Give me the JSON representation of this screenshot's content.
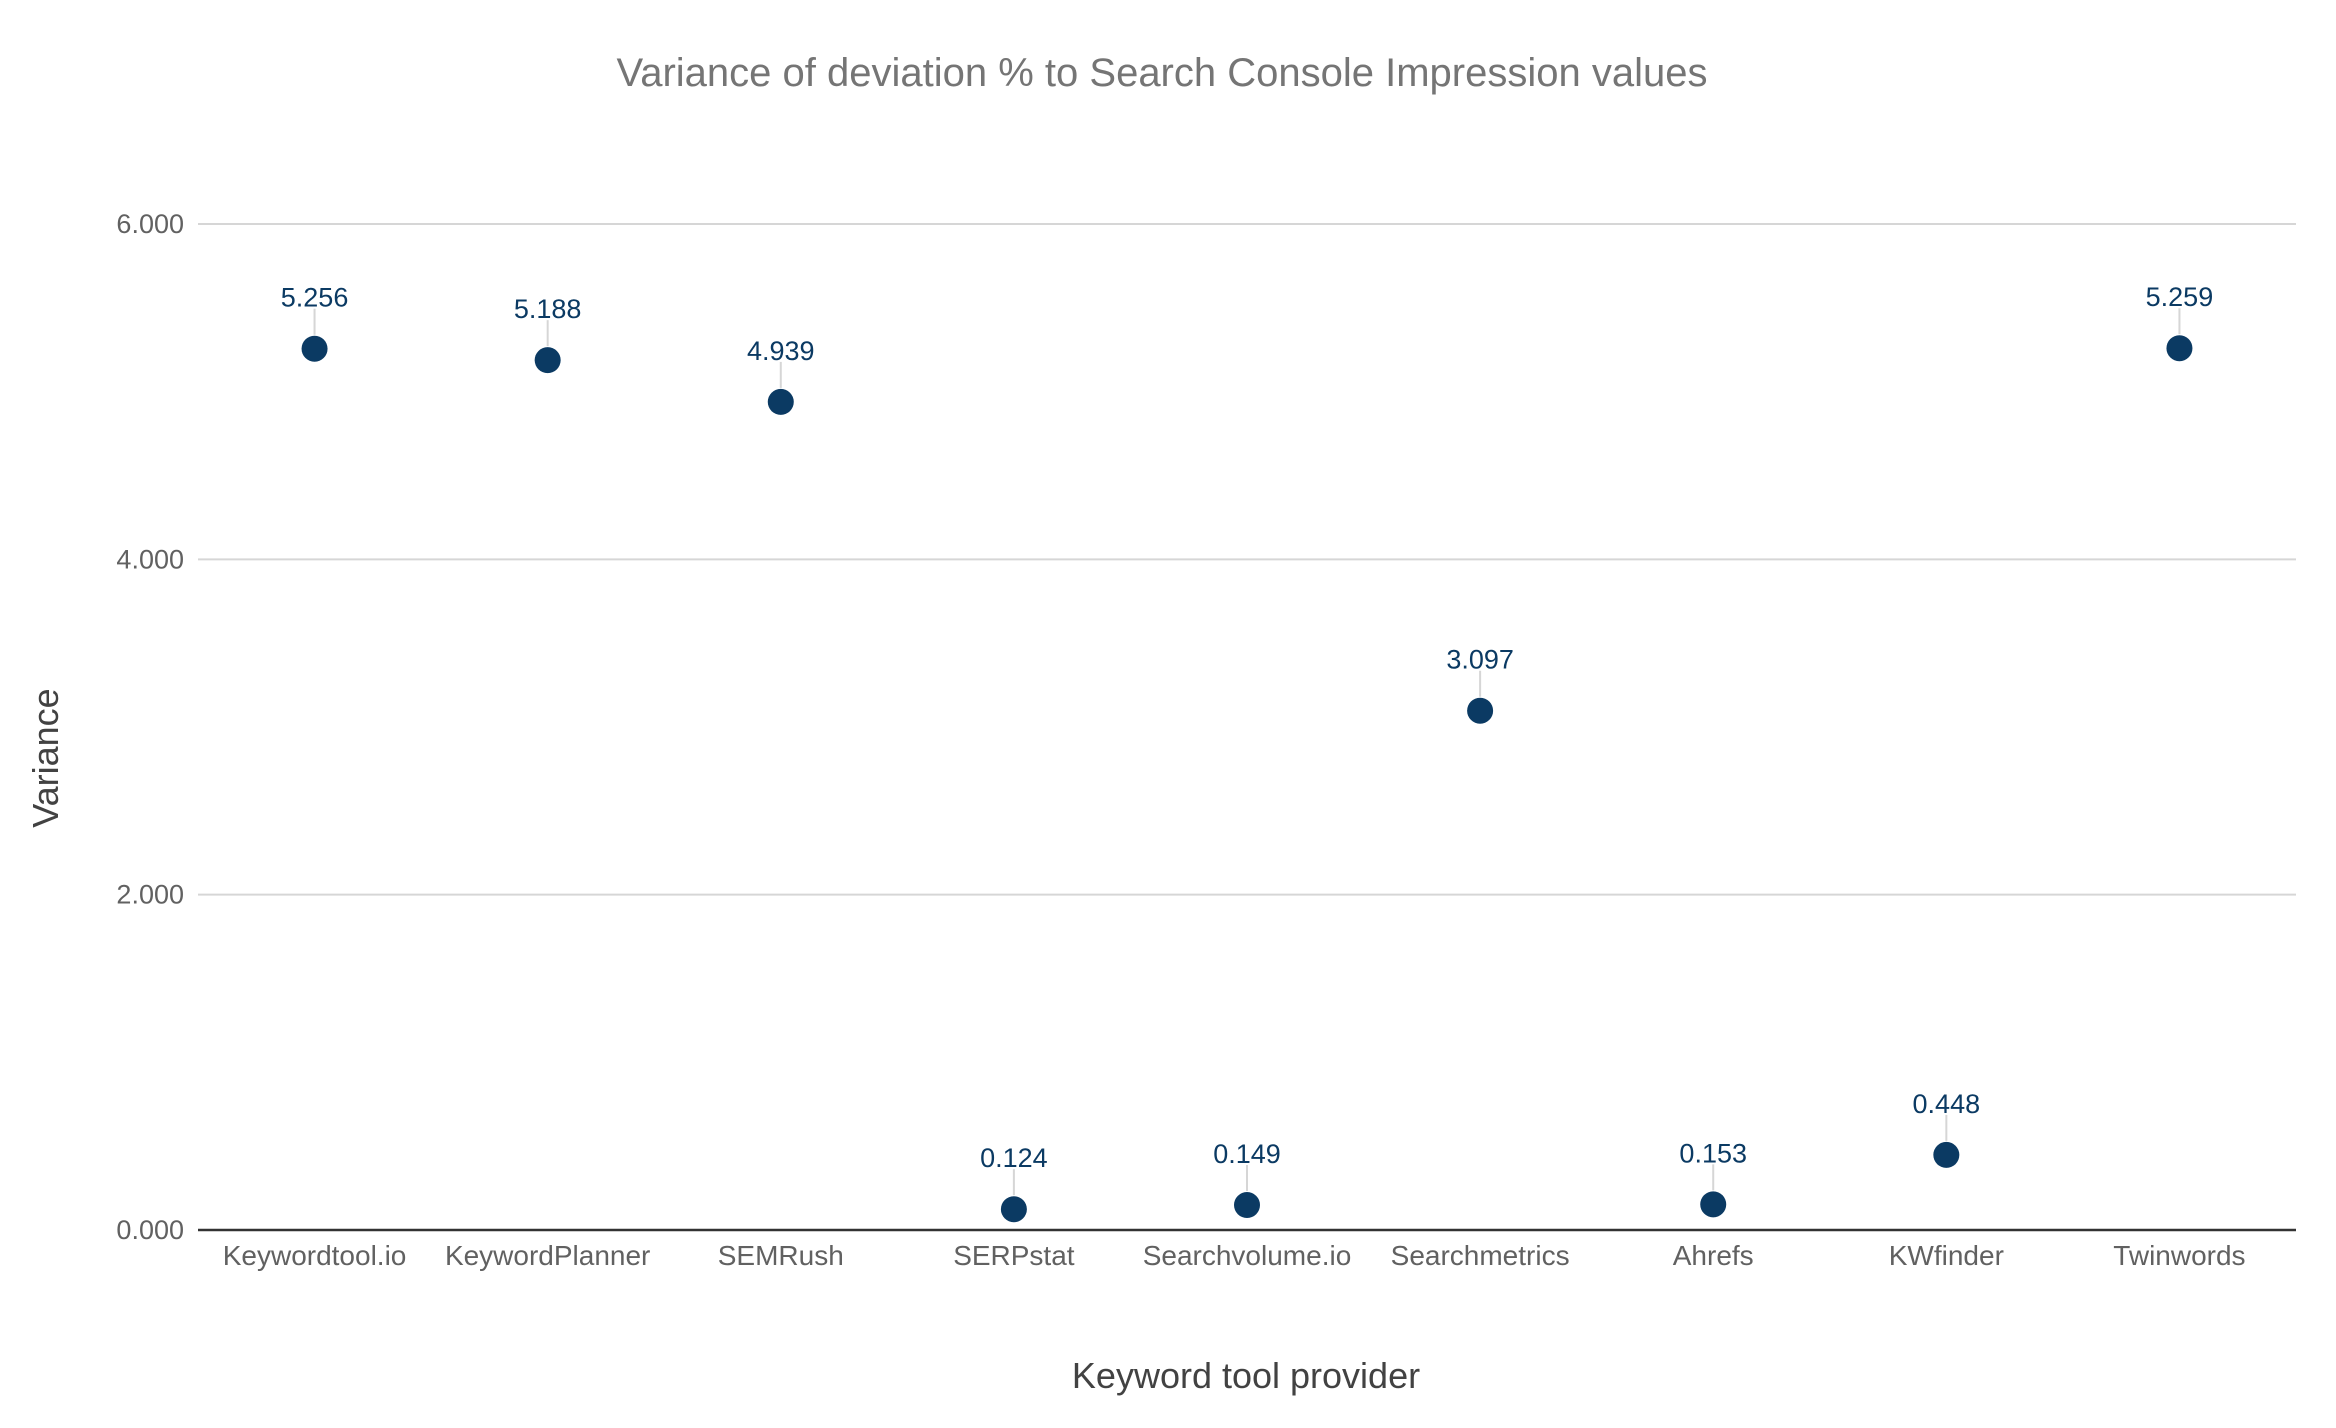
{
  "chart_data": {
    "type": "scatter",
    "title": "Variance of deviation % to Search Console Impression values",
    "xlabel": "Keyword tool provider",
    "ylabel": "Variance",
    "ylim": [
      0,
      6
    ],
    "yticks": [
      0,
      2,
      4,
      6
    ],
    "ytick_labels": [
      "0.000",
      "2.000",
      "4.000",
      "6.000"
    ],
    "grid": true,
    "legend": "none",
    "categories": [
      "Keywordtool.io",
      "KeywordPlanner",
      "SEMRush",
      "SERPstat",
      "Searchvolume.io",
      "Searchmetrics",
      "Ahrefs",
      "KWfinder",
      "Twinwords"
    ],
    "values": [
      5.256,
      5.188,
      4.939,
      0.124,
      0.149,
      3.097,
      0.153,
      0.448,
      5.259
    ],
    "value_labels": [
      "5.256",
      "5.188",
      "4.939",
      "0.124",
      "0.149",
      "3.097",
      "0.153",
      "0.448",
      "5.259"
    ],
    "marker_color": "#0b3a63"
  }
}
